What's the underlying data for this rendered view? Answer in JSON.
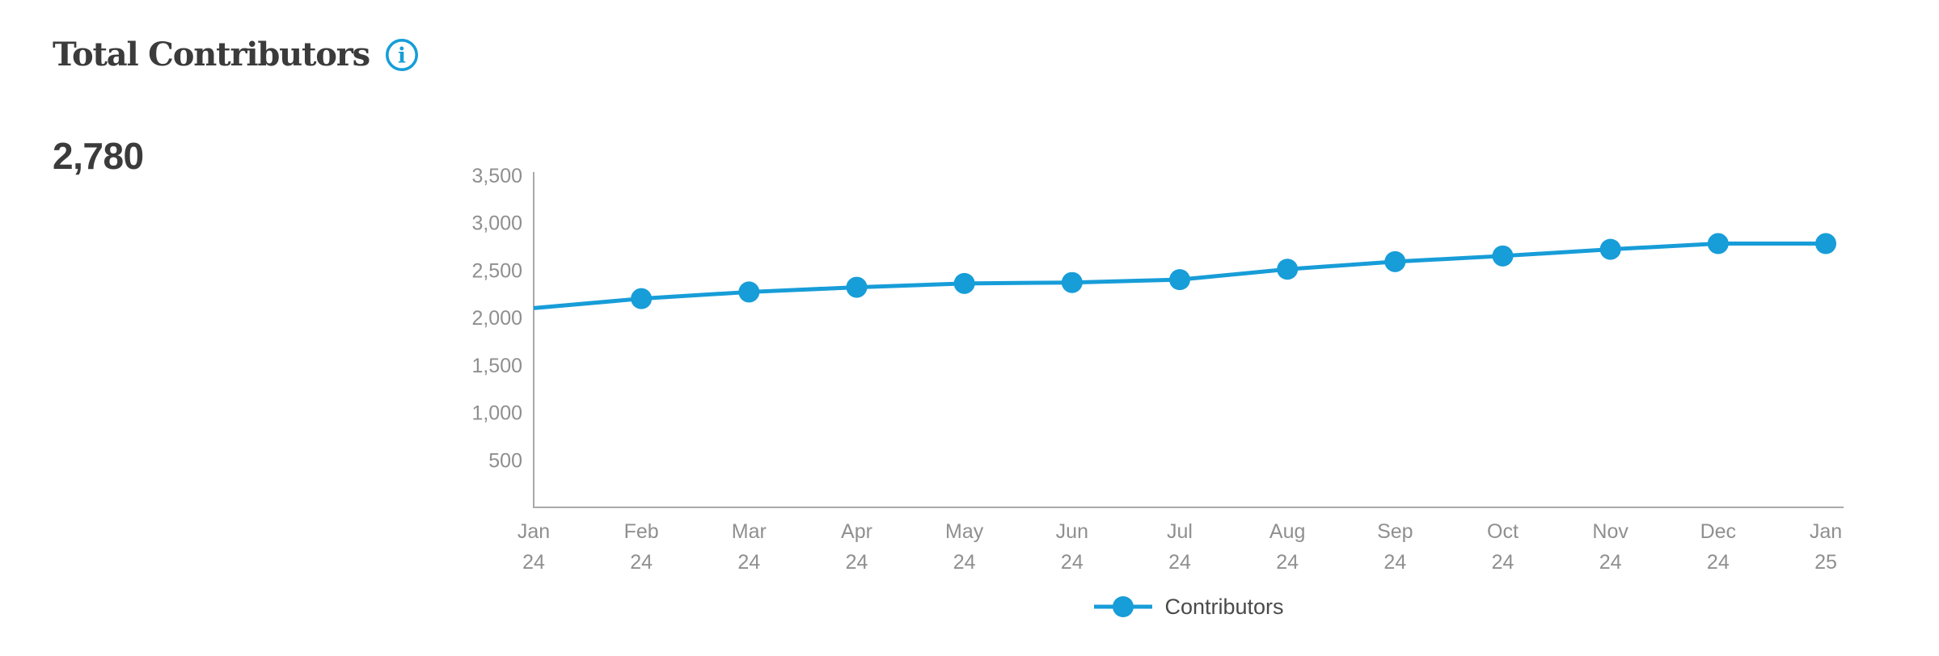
{
  "header": {
    "title": "Total Contributors",
    "info_icon": "info-icon"
  },
  "metric": {
    "value": "2,780"
  },
  "colors": {
    "accent_blue": "#179dd8",
    "title_text": "#3b3b3b",
    "axis_line": "#a9a9a9",
    "tick_label": "#8f8f8f",
    "legend_text": "#4a4a4a",
    "background": "#ffffff"
  },
  "chart_data": {
    "type": "line",
    "title": "Total Contributors",
    "categories": [
      "Jan 24",
      "Feb 24",
      "Mar 24",
      "Apr 24",
      "May 24",
      "Jun 24",
      "Jul 24",
      "Aug 24",
      "Sep 24",
      "Oct 24",
      "Nov 24",
      "Dec 24",
      "Jan 25"
    ],
    "series": [
      {
        "name": "Contributors",
        "color": "#179dd8",
        "values": [
          2100,
          2200,
          2270,
          2320,
          2360,
          2370,
          2400,
          2510,
          2590,
          2650,
          2720,
          2780,
          2780
        ]
      }
    ],
    "xlabel": "",
    "ylabel": "",
    "ylim": [
      0,
      3500
    ],
    "y_ticks": [
      {
        "value": 500,
        "label": "500"
      },
      {
        "value": 1000,
        "label": "1,000"
      },
      {
        "value": 1500,
        "label": "1,500"
      },
      {
        "value": 2000,
        "label": "2,000"
      },
      {
        "value": 2500,
        "label": "2,500"
      },
      {
        "value": 3000,
        "label": "3,000"
      },
      {
        "value": 3500,
        "label": "3,500"
      }
    ],
    "grid": false,
    "first_point_marker_hidden": true,
    "legend_position": "bottom",
    "legend": [
      "Contributors"
    ]
  }
}
